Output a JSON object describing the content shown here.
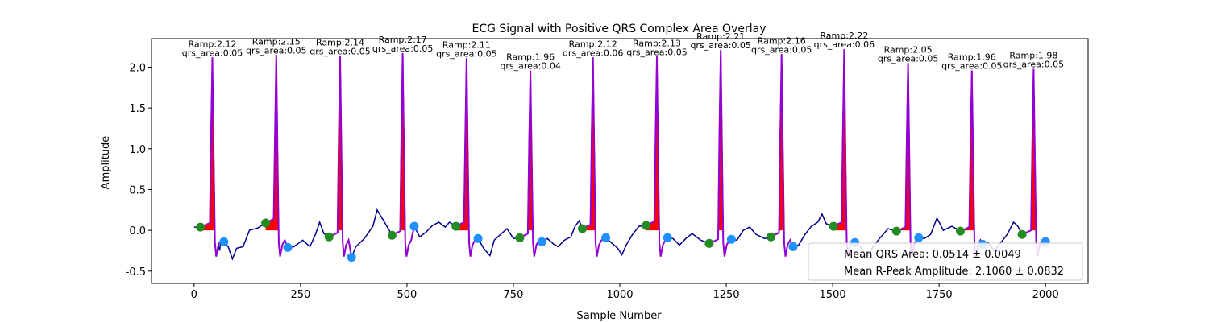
{
  "chart_data": {
    "type": "line",
    "title": "ECG Signal with Positive QRS Complex Area Overlay",
    "xlabel": "Sample Number",
    "ylabel": "Amplitude",
    "xlim": [
      -100,
      2100
    ],
    "ylim": [
      -0.65,
      2.35
    ],
    "xticks": [
      0,
      250,
      500,
      750,
      1000,
      1250,
      1500,
      1750,
      2000
    ],
    "yticks": [
      -0.5,
      0.0,
      0.5,
      1.0,
      1.5,
      2.0
    ],
    "grid": false,
    "legend": {
      "placement": "lower-right",
      "entries": [
        "Mean QRS Area: 0.0514 ± 0.0049",
        "Mean R-Peak Amplitude: 2.1060 ± 0.0832"
      ]
    },
    "colors": {
      "signal": "#00008b",
      "qrs_segment": "#9400d3",
      "qrs_area": "#ff0000",
      "q_marker": "#228b22",
      "s_marker": "#1e90ff"
    },
    "beats": [
      {
        "r": 43,
        "amp": 2.12,
        "area": 0.05,
        "q": 15,
        "qv": 0.04,
        "s": 70,
        "sv": -0.14,
        "ramp_label": "Ramp:2.12",
        "area_label": "qrs_area:0.05"
      },
      {
        "r": 193,
        "amp": 2.15,
        "area": 0.05,
        "q": 168,
        "qv": 0.09,
        "s": 220,
        "sv": -0.21,
        "ramp_label": "Ramp:2.15",
        "area_label": "qrs_area:0.05"
      },
      {
        "r": 343,
        "amp": 2.14,
        "area": 0.05,
        "q": 317,
        "qv": -0.08,
        "s": 370,
        "sv": -0.33,
        "ramp_label": "Ramp:2.14",
        "area_label": "qrs_area:0.05"
      },
      {
        "r": 490,
        "amp": 2.17,
        "area": 0.05,
        "q": 465,
        "qv": -0.06,
        "s": 517,
        "sv": 0.05,
        "ramp_label": "Ramp:2.17",
        "area_label": "qrs_area:0.05"
      },
      {
        "r": 640,
        "amp": 2.11,
        "area": 0.05,
        "q": 615,
        "qv": 0.05,
        "s": 667,
        "sv": -0.1,
        "ramp_label": "Ramp:2.11",
        "area_label": "qrs_area:0.05"
      },
      {
        "r": 790,
        "amp": 1.96,
        "area": 0.04,
        "q": 765,
        "qv": -0.09,
        "s": 817,
        "sv": -0.14,
        "ramp_label": "Ramp:1.96",
        "area_label": "qrs_area:0.04"
      },
      {
        "r": 937,
        "amp": 2.12,
        "area": 0.06,
        "q": 912,
        "qv": 0.02,
        "s": 967,
        "sv": -0.09,
        "ramp_label": "Ramp:2.12",
        "area_label": "qrs_area:0.06"
      },
      {
        "r": 1087,
        "amp": 2.13,
        "area": 0.05,
        "q": 1062,
        "qv": 0.06,
        "s": 1112,
        "sv": -0.09,
        "ramp_label": "Ramp:2.13",
        "area_label": "qrs_area:0.05"
      },
      {
        "r": 1237,
        "amp": 2.21,
        "area": 0.05,
        "q": 1210,
        "qv": -0.16,
        "s": 1262,
        "sv": -0.11,
        "ramp_label": "Ramp:2.21",
        "area_label": "qrs_area:0.05"
      },
      {
        "r": 1380,
        "amp": 2.16,
        "area": 0.05,
        "q": 1355,
        "qv": -0.08,
        "s": 1407,
        "sv": -0.2,
        "ramp_label": "Ramp:2.16",
        "area_label": "qrs_area:0.05"
      },
      {
        "r": 1527,
        "amp": 2.22,
        "area": 0.06,
        "q": 1502,
        "qv": 0.05,
        "s": 1552,
        "sv": -0.15,
        "ramp_label": "Ramp:2.22",
        "area_label": "qrs_area:0.06"
      },
      {
        "r": 1677,
        "amp": 2.05,
        "area": 0.05,
        "q": 1650,
        "qv": -0.01,
        "s": 1702,
        "sv": -0.09,
        "ramp_label": "Ramp:2.05",
        "area_label": "qrs_area:0.05"
      },
      {
        "r": 1827,
        "amp": 1.96,
        "area": 0.05,
        "q": 1800,
        "qv": -0.01,
        "s": 1852,
        "sv": -0.17,
        "ramp_label": "Ramp:1.96",
        "area_label": "qrs_area:0.05"
      },
      {
        "r": 1972,
        "amp": 1.98,
        "area": 0.05,
        "q": 1945,
        "qv": -0.05,
        "s": 2000,
        "sv": -0.14,
        "ramp_label": "Ramp:1.98",
        "area_label": "qrs_area:0.05"
      }
    ],
    "baseline": [
      [
        0,
        0.04
      ],
      [
        15,
        0.04
      ],
      [
        60,
        -0.25
      ],
      [
        70,
        -0.14
      ],
      [
        80,
        -0.2
      ],
      [
        90,
        -0.35
      ],
      [
        100,
        -0.22
      ],
      [
        115,
        -0.2
      ],
      [
        130,
        0.0
      ],
      [
        150,
        0.03
      ],
      [
        168,
        0.09
      ],
      [
        220,
        -0.21
      ],
      [
        235,
        -0.2
      ],
      [
        255,
        -0.12
      ],
      [
        272,
        -0.2
      ],
      [
        285,
        -0.05
      ],
      [
        295,
        0.1
      ],
      [
        305,
        -0.04
      ],
      [
        317,
        -0.08
      ],
      [
        370,
        -0.33
      ],
      [
        380,
        -0.2
      ],
      [
        400,
        -0.1
      ],
      [
        420,
        0.05
      ],
      [
        430,
        0.25
      ],
      [
        445,
        0.12
      ],
      [
        465,
        -0.06
      ],
      [
        517,
        0.05
      ],
      [
        530,
        -0.08
      ],
      [
        545,
        -0.02
      ],
      [
        560,
        0.06
      ],
      [
        575,
        0.1
      ],
      [
        590,
        0.04
      ],
      [
        600,
        0.1
      ],
      [
        615,
        0.05
      ],
      [
        667,
        -0.1
      ],
      [
        680,
        -0.22
      ],
      [
        695,
        -0.31
      ],
      [
        705,
        -0.12
      ],
      [
        720,
        -0.05
      ],
      [
        735,
        0.02
      ],
      [
        750,
        -0.1
      ],
      [
        765,
        -0.09
      ],
      [
        817,
        -0.14
      ],
      [
        830,
        -0.1
      ],
      [
        845,
        -0.17
      ],
      [
        855,
        -0.2
      ],
      [
        870,
        -0.12
      ],
      [
        885,
        -0.08
      ],
      [
        895,
        0.05
      ],
      [
        905,
        0.12
      ],
      [
        912,
        0.02
      ],
      [
        967,
        -0.09
      ],
      [
        980,
        -0.15
      ],
      [
        995,
        -0.22
      ],
      [
        1005,
        -0.3
      ],
      [
        1015,
        -0.18
      ],
      [
        1030,
        -0.05
      ],
      [
        1045,
        0.05
      ],
      [
        1062,
        0.06
      ],
      [
        1112,
        -0.09
      ],
      [
        1125,
        -0.1
      ],
      [
        1140,
        -0.18
      ],
      [
        1155,
        -0.1
      ],
      [
        1170,
        -0.04
      ],
      [
        1190,
        -0.12
      ],
      [
        1210,
        -0.16
      ],
      [
        1262,
        -0.11
      ],
      [
        1275,
        -0.12
      ],
      [
        1290,
        0.0
      ],
      [
        1305,
        0.04
      ],
      [
        1320,
        -0.05
      ],
      [
        1340,
        -0.1
      ],
      [
        1355,
        -0.08
      ],
      [
        1407,
        -0.2
      ],
      [
        1420,
        -0.18
      ],
      [
        1435,
        -0.05
      ],
      [
        1450,
        0.05
      ],
      [
        1465,
        0.1
      ],
      [
        1475,
        0.2
      ],
      [
        1485,
        0.08
      ],
      [
        1502,
        0.05
      ],
      [
        1552,
        -0.15
      ],
      [
        1565,
        -0.2
      ],
      [
        1580,
        -0.33
      ],
      [
        1595,
        -0.2
      ],
      [
        1610,
        -0.1
      ],
      [
        1630,
        0.02
      ],
      [
        1650,
        -0.01
      ],
      [
        1702,
        -0.09
      ],
      [
        1715,
        -0.1
      ],
      [
        1730,
        -0.05
      ],
      [
        1745,
        0.15
      ],
      [
        1760,
        0.0
      ],
      [
        1780,
        0.05
      ],
      [
        1800,
        -0.01
      ],
      [
        1852,
        -0.17
      ],
      [
        1865,
        -0.15
      ],
      [
        1880,
        -0.25
      ],
      [
        1895,
        -0.15
      ],
      [
        1910,
        -0.05
      ],
      [
        1925,
        0.1
      ],
      [
        1935,
        0.05
      ],
      [
        1945,
        -0.05
      ],
      [
        2000,
        -0.14
      ],
      [
        2010,
        -0.15
      ]
    ]
  }
}
